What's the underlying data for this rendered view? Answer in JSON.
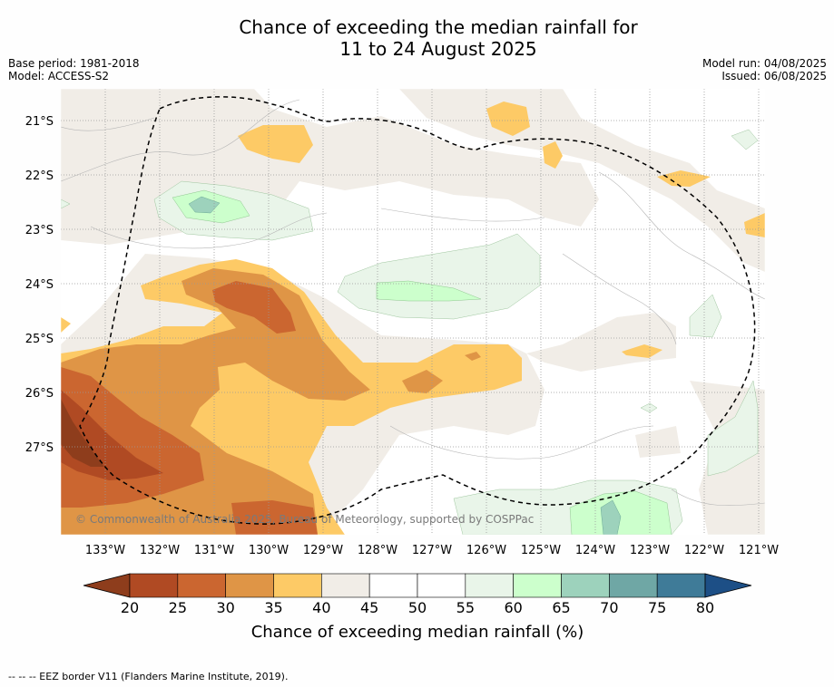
{
  "title": {
    "line1": "Chance of exceeding the median rainfall for",
    "line2": "11 to 24 August 2025"
  },
  "meta": {
    "base_period": "Base period: 1981-2018",
    "model": "Model: ACCESS-S2",
    "model_run": "Model run: 04/08/2025",
    "issued": "Issued: 06/08/2025"
  },
  "copyright": "© Commonwealth of Australia 2025, Bureau of Meteorology, supported by COSPPac",
  "footnote": "--  --  -- EEZ border V11 (Flanders Marine Institute, 2019).",
  "chart_data": {
    "type": "heatmap",
    "title": "Chance of exceeding the median rainfall for 11 to 24 August 2025",
    "xlabel": "",
    "ylabel": "",
    "x_ticks": [
      "133°W",
      "132°W",
      "131°W",
      "130°W",
      "129°W",
      "128°W",
      "127°W",
      "126°W",
      "125°W",
      "124°W",
      "123°W",
      "122°W",
      "121°W"
    ],
    "y_ticks": [
      "21°S",
      "22°S",
      "23°S",
      "24°S",
      "25°S",
      "26°S",
      "27°S"
    ],
    "xlim": [
      -133.8,
      -120.9
    ],
    "ylim": [
      -28.6,
      -20.4
    ],
    "grid": true,
    "colorbar": {
      "label": "Chance of exceeding median rainfall (%)",
      "ticks": [
        20,
        25,
        30,
        35,
        40,
        45,
        50,
        55,
        60,
        65,
        70,
        75,
        80
      ],
      "colors": [
        "#8e3d1c",
        "#b04a23",
        "#cb6630",
        "#df9546",
        "#fdca66",
        "#f1ede7",
        "#ffffff",
        "#ffffff",
        "#e9f5e9",
        "#ccffcc",
        "#9dd2bc",
        "#6fa7a5",
        "#3f7b98",
        "#1d4f86"
      ],
      "extend": "both"
    },
    "colors": {
      "background": "#ffffff",
      "grid": "#999999",
      "eez_border": "#000000"
    }
  }
}
